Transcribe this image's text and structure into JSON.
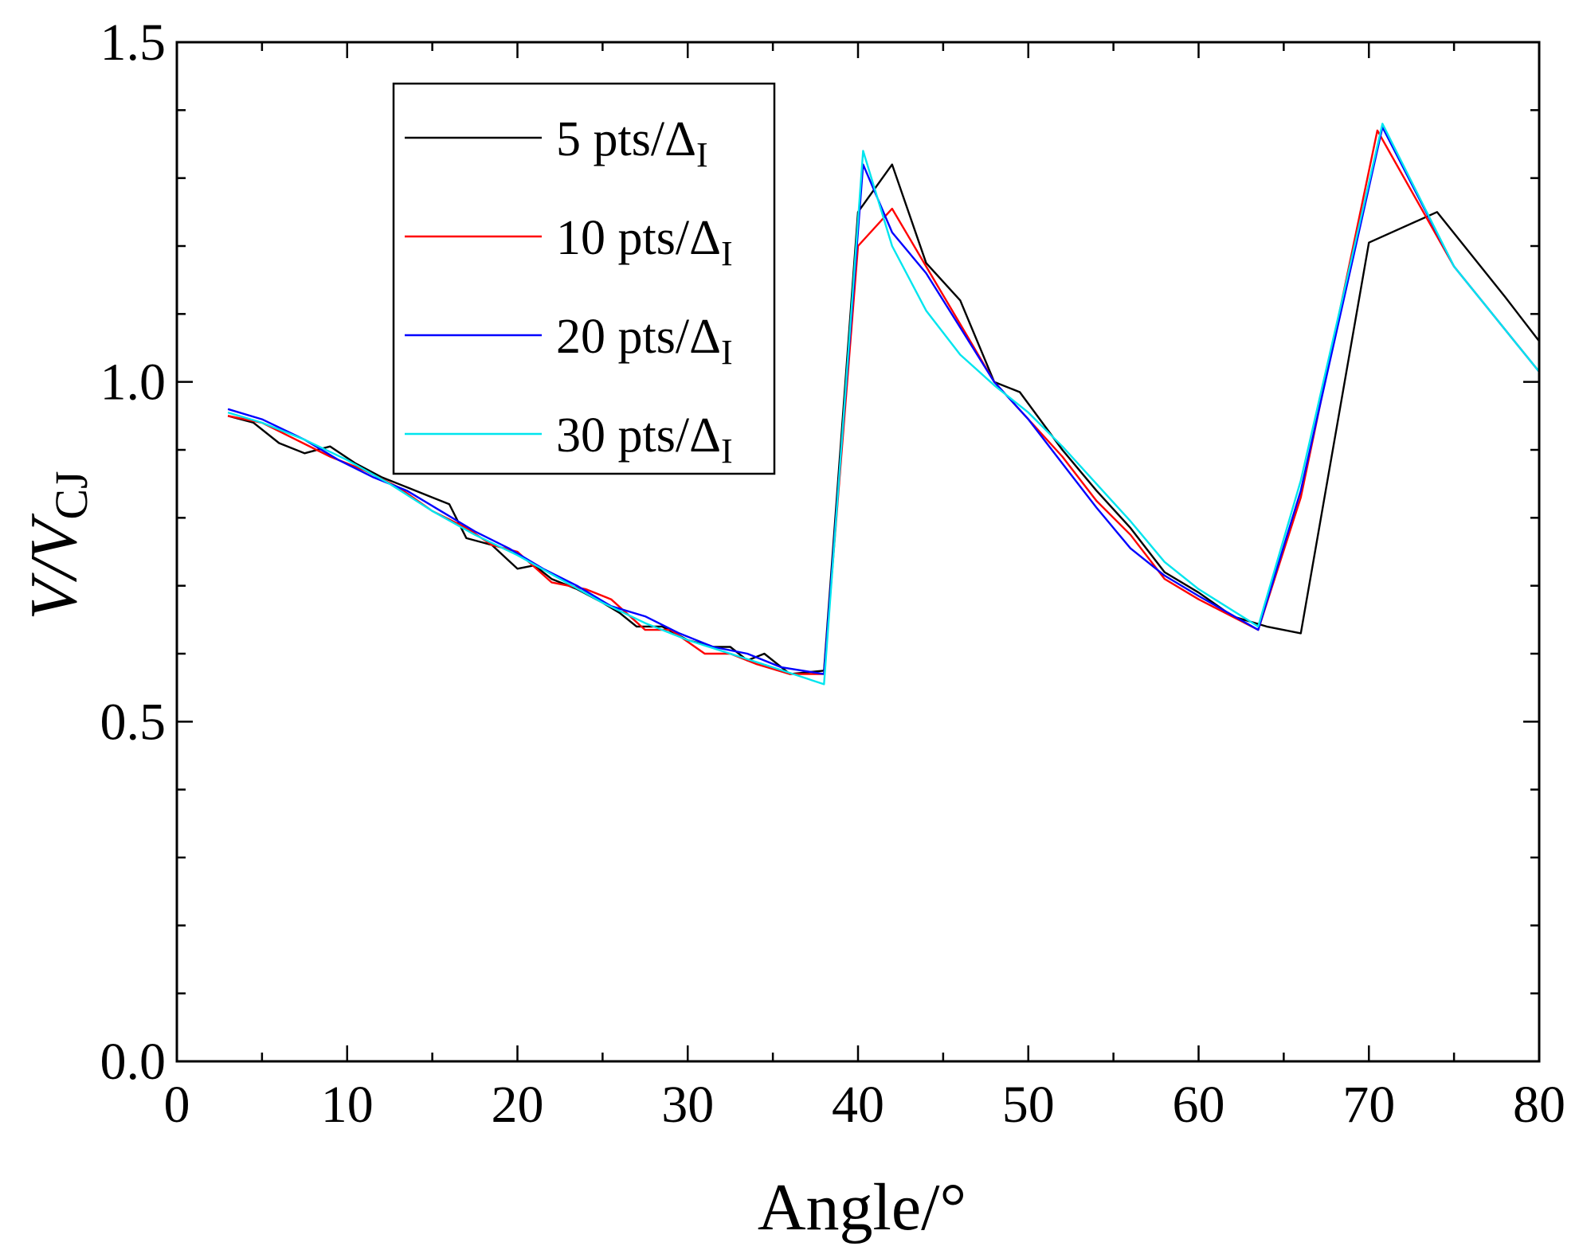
{
  "chart_data": {
    "type": "line",
    "title": "",
    "xlabel": "Angle/°",
    "ylabel": {
      "italic_part": "V/V",
      "subscript": "CJ"
    },
    "xlim": [
      0,
      80
    ],
    "ylim": [
      0,
      1.5
    ],
    "xticks": [
      0,
      10,
      20,
      30,
      40,
      50,
      60,
      70,
      80
    ],
    "xtick_labels": [
      "0",
      "10",
      "20",
      "30",
      "40",
      "50",
      "60",
      "70",
      "80"
    ],
    "yticks": [
      0,
      0.5,
      1.0,
      1.5
    ],
    "ytick_labels": [
      "0.0",
      "0.5",
      "1.0",
      "1.5"
    ],
    "grid": false,
    "legend_position": "top-left",
    "series": [
      {
        "name": "5 pts/Δ",
        "name_subscript": "I",
        "color": "#000000",
        "x": [
          3,
          4.5,
          6,
          7.5,
          9,
          10.5,
          12,
          13.5,
          15,
          16,
          17,
          18.5,
          20,
          21,
          22,
          23.5,
          25,
          26,
          27,
          28.5,
          30,
          31.5,
          32.5,
          33.5,
          34.5,
          36,
          38,
          40,
          42,
          44,
          46,
          48,
          49.5,
          52,
          54,
          56,
          58,
          60,
          62,
          64,
          66,
          70,
          74,
          78,
          80
        ],
        "values": [
          0.95,
          0.94,
          0.91,
          0.895,
          0.905,
          0.88,
          0.86,
          0.845,
          0.83,
          0.82,
          0.77,
          0.76,
          0.725,
          0.73,
          0.71,
          0.695,
          0.675,
          0.66,
          0.64,
          0.64,
          0.62,
          0.61,
          0.61,
          0.59,
          0.6,
          0.57,
          0.575,
          1.25,
          1.32,
          1.175,
          1.12,
          1.0,
          0.985,
          0.9,
          0.84,
          0.785,
          0.72,
          0.69,
          0.655,
          0.64,
          0.63,
          1.205,
          1.25,
          1.125,
          1.06
        ]
      },
      {
        "name": "10 pts/Δ",
        "name_subscript": "I",
        "color": "#ff0000",
        "x": [
          3,
          5,
          7,
          9,
          11,
          13,
          15,
          17,
          18.5,
          20,
          22,
          24,
          25.5,
          27.5,
          29,
          31,
          32.5,
          34,
          36,
          38,
          40,
          42,
          44,
          46,
          48,
          50,
          52,
          54,
          56,
          58,
          60,
          63.5,
          66,
          70.5,
          75,
          80
        ],
        "values": [
          0.95,
          0.94,
          0.915,
          0.89,
          0.87,
          0.845,
          0.81,
          0.785,
          0.76,
          0.75,
          0.705,
          0.695,
          0.68,
          0.635,
          0.635,
          0.6,
          0.6,
          0.585,
          0.57,
          0.57,
          1.2,
          1.255,
          1.17,
          1.085,
          1.0,
          0.945,
          0.89,
          0.825,
          0.775,
          0.71,
          0.68,
          0.635,
          0.83,
          1.37,
          1.17,
          1.015
        ]
      },
      {
        "name": "20 pts/Δ",
        "name_subscript": "I",
        "color": "#0000ff",
        "x": [
          3,
          5,
          7.5,
          9.5,
          11.5,
          13.5,
          15.5,
          17.5,
          19.5,
          21.5,
          23.5,
          25.5,
          27.5,
          29.5,
          31.5,
          33.5,
          35.5,
          38,
          40.3,
          42,
          44,
          46,
          48,
          50,
          52,
          54,
          56,
          58,
          60,
          63.5,
          66,
          70.8,
          75,
          80
        ],
        "values": [
          0.96,
          0.945,
          0.915,
          0.885,
          0.86,
          0.84,
          0.81,
          0.78,
          0.755,
          0.725,
          0.7,
          0.67,
          0.655,
          0.63,
          0.61,
          0.6,
          0.58,
          0.57,
          1.32,
          1.22,
          1.16,
          1.08,
          1.0,
          0.945,
          0.88,
          0.815,
          0.755,
          0.715,
          0.685,
          0.635,
          0.84,
          1.375,
          1.17,
          1.015
        ]
      },
      {
        "name": "30 pts/Δ",
        "name_subscript": "I",
        "color": "#00e5ee",
        "x": [
          3,
          5,
          7.5,
          10,
          12.5,
          15,
          17.5,
          20,
          22.5,
          25,
          27.5,
          30,
          32.5,
          35,
          38,
          40.3,
          42,
          44,
          46,
          48,
          50,
          52,
          54,
          56,
          58,
          60,
          63.5,
          66,
          70.8,
          75,
          80
        ],
        "values": [
          0.955,
          0.94,
          0.915,
          0.885,
          0.85,
          0.81,
          0.775,
          0.745,
          0.71,
          0.675,
          0.645,
          0.62,
          0.6,
          0.58,
          0.555,
          1.34,
          1.2,
          1.105,
          1.04,
          0.995,
          0.955,
          0.905,
          0.85,
          0.795,
          0.735,
          0.695,
          0.64,
          0.855,
          1.38,
          1.17,
          1.015
        ]
      }
    ]
  }
}
